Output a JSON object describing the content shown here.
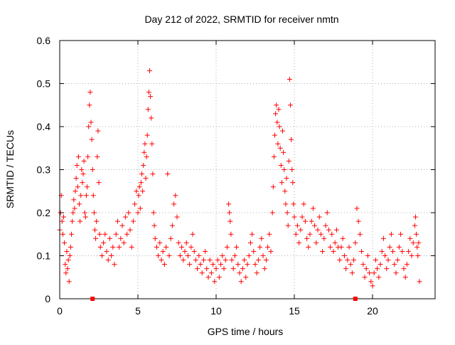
{
  "chart_data": {
    "type": "scatter",
    "title": "Day 212 of 2022, SRMTID for receiver nmtn",
    "xlabel": "GPS time / hours",
    "ylabel": "SRMTID / TECUs",
    "xlim": [
      0,
      24
    ],
    "ylim": [
      0,
      0.6
    ],
    "xticks": [
      0,
      5,
      10,
      15,
      20
    ],
    "xtick_labels": [
      "0",
      "5",
      "10",
      "15",
      "20"
    ],
    "yticks": [
      0,
      0.1,
      0.2,
      0.3,
      0.4,
      0.5,
      0.6
    ],
    "ytick_labels": [
      "0",
      "0.1",
      "0.2",
      "0.3",
      "0.4",
      "0.5",
      "0.6"
    ],
    "grid": true,
    "marker": "+",
    "color": "#ff0000",
    "series": [
      {
        "name": "SRMTID",
        "points": [
          [
            0.0,
            0.16
          ],
          [
            0.05,
            0.2
          ],
          [
            0.1,
            0.24
          ],
          [
            0.15,
            0.18
          ],
          [
            0.2,
            0.15
          ],
          [
            0.25,
            0.19
          ],
          [
            0.3,
            0.13
          ],
          [
            0.35,
            0.08
          ],
          [
            0.4,
            0.06
          ],
          [
            0.45,
            0.11
          ],
          [
            0.5,
            0.07
          ],
          [
            0.55,
            0.09
          ],
          [
            0.6,
            0.04
          ],
          [
            0.65,
            0.1
          ],
          [
            0.7,
            0.12
          ],
          [
            0.75,
            0.15
          ],
          [
            0.8,
            0.18
          ],
          [
            0.85,
            0.2
          ],
          [
            0.9,
            0.23
          ],
          [
            0.95,
            0.21
          ],
          [
            1.0,
            0.25
          ],
          [
            1.05,
            0.28
          ],
          [
            1.1,
            0.31
          ],
          [
            1.15,
            0.26
          ],
          [
            1.2,
            0.33
          ],
          [
            1.25,
            0.22
          ],
          [
            1.3,
            0.18
          ],
          [
            1.35,
            0.24
          ],
          [
            1.4,
            0.3
          ],
          [
            1.45,
            0.27
          ],
          [
            1.5,
            0.29
          ],
          [
            1.55,
            0.32
          ],
          [
            1.6,
            0.2
          ],
          [
            1.65,
            0.19
          ],
          [
            1.7,
            0.24
          ],
          [
            1.75,
            0.26
          ],
          [
            1.8,
            0.33
          ],
          [
            1.85,
            0.4
          ],
          [
            1.9,
            0.45
          ],
          [
            1.95,
            0.48
          ],
          [
            2.0,
            0.41
          ],
          [
            2.05,
            0.37
          ],
          [
            2.1,
            0.3
          ],
          [
            2.15,
            0.24
          ],
          [
            2.2,
            0.2
          ],
          [
            2.25,
            0.16
          ],
          [
            2.3,
            0.14
          ],
          [
            2.35,
            0.18
          ],
          [
            2.4,
            0.33
          ],
          [
            2.45,
            0.39
          ],
          [
            2.5,
            0.27
          ],
          [
            2.55,
            0.15
          ],
          [
            2.6,
            0.12
          ],
          [
            2.7,
            0.1
          ],
          [
            2.8,
            0.13
          ],
          [
            2.9,
            0.15
          ],
          [
            3.0,
            0.11
          ],
          [
            3.1,
            0.09
          ],
          [
            3.2,
            0.14
          ],
          [
            3.3,
            0.1
          ],
          [
            3.4,
            0.12
          ],
          [
            3.5,
            0.08
          ],
          [
            3.6,
            0.15
          ],
          [
            3.7,
            0.18
          ],
          [
            3.8,
            0.12
          ],
          [
            3.9,
            0.14
          ],
          [
            4.0,
            0.17
          ],
          [
            4.1,
            0.13
          ],
          [
            4.2,
            0.19
          ],
          [
            4.3,
            0.15
          ],
          [
            4.4,
            0.2
          ],
          [
            4.5,
            0.16
          ],
          [
            4.6,
            0.12
          ],
          [
            4.7,
            0.18
          ],
          [
            4.8,
            0.22
          ],
          [
            4.9,
            0.25
          ],
          [
            5.0,
            0.2
          ],
          [
            5.05,
            0.24
          ],
          [
            5.1,
            0.26
          ],
          [
            5.15,
            0.21
          ],
          [
            5.2,
            0.27
          ],
          [
            5.25,
            0.29
          ],
          [
            5.3,
            0.25
          ],
          [
            5.35,
            0.31
          ],
          [
            5.4,
            0.34
          ],
          [
            5.45,
            0.36
          ],
          [
            5.5,
            0.28
          ],
          [
            5.55,
            0.33
          ],
          [
            5.6,
            0.38
          ],
          [
            5.65,
            0.44
          ],
          [
            5.7,
            0.48
          ],
          [
            5.75,
            0.53
          ],
          [
            5.8,
            0.47
          ],
          [
            5.85,
            0.42
          ],
          [
            5.9,
            0.36
          ],
          [
            5.95,
            0.29
          ],
          [
            6.0,
            0.2
          ],
          [
            6.05,
            0.17
          ],
          [
            6.1,
            0.14
          ],
          [
            6.2,
            0.12
          ],
          [
            6.3,
            0.1
          ],
          [
            6.4,
            0.13
          ],
          [
            6.5,
            0.09
          ],
          [
            6.6,
            0.11
          ],
          [
            6.7,
            0.08
          ],
          [
            6.8,
            0.12
          ],
          [
            6.9,
            0.29
          ],
          [
            7.0,
            0.1
          ],
          [
            7.1,
            0.14
          ],
          [
            7.2,
            0.17
          ],
          [
            7.3,
            0.22
          ],
          [
            7.4,
            0.24
          ],
          [
            7.5,
            0.19
          ],
          [
            7.6,
            0.13
          ],
          [
            7.7,
            0.1
          ],
          [
            7.8,
            0.12
          ],
          [
            7.9,
            0.09
          ],
          [
            8.0,
            0.11
          ],
          [
            8.1,
            0.13
          ],
          [
            8.2,
            0.1
          ],
          [
            8.3,
            0.08
          ],
          [
            8.4,
            0.12
          ],
          [
            8.5,
            0.15
          ],
          [
            8.6,
            0.11
          ],
          [
            8.7,
            0.09
          ],
          [
            8.8,
            0.07
          ],
          [
            8.9,
            0.1
          ],
          [
            9.0,
            0.08
          ],
          [
            9.1,
            0.06
          ],
          [
            9.2,
            0.09
          ],
          [
            9.3,
            0.11
          ],
          [
            9.4,
            0.07
          ],
          [
            9.5,
            0.05
          ],
          [
            9.6,
            0.09
          ],
          [
            9.7,
            0.06
          ],
          [
            9.8,
            0.08
          ],
          [
            9.9,
            0.04
          ],
          [
            10.0,
            0.07
          ],
          [
            10.1,
            0.09
          ],
          [
            10.2,
            0.05
          ],
          [
            10.3,
            0.08
          ],
          [
            10.4,
            0.1
          ],
          [
            10.5,
            0.07
          ],
          [
            10.6,
            0.09
          ],
          [
            10.7,
            0.12
          ],
          [
            10.8,
            0.22
          ],
          [
            10.85,
            0.2
          ],
          [
            10.9,
            0.18
          ],
          [
            10.95,
            0.15
          ],
          [
            11.0,
            0.09
          ],
          [
            11.1,
            0.07
          ],
          [
            11.2,
            0.1
          ],
          [
            11.3,
            0.12
          ],
          [
            11.4,
            0.08
          ],
          [
            11.5,
            0.06
          ],
          [
            11.6,
            0.04
          ],
          [
            11.7,
            0.07
          ],
          [
            11.8,
            0.09
          ],
          [
            11.9,
            0.05
          ],
          [
            12.0,
            0.08
          ],
          [
            12.1,
            0.1
          ],
          [
            12.2,
            0.13
          ],
          [
            12.3,
            0.15
          ],
          [
            12.4,
            0.11
          ],
          [
            12.5,
            0.08
          ],
          [
            12.6,
            0.06
          ],
          [
            12.7,
            0.09
          ],
          [
            12.8,
            0.12
          ],
          [
            12.9,
            0.14
          ],
          [
            13.0,
            0.1
          ],
          [
            13.1,
            0.07
          ],
          [
            13.2,
            0.09
          ],
          [
            13.3,
            0.12
          ],
          [
            13.4,
            0.15
          ],
          [
            13.5,
            0.11
          ],
          [
            13.6,
            0.2
          ],
          [
            13.65,
            0.26
          ],
          [
            13.7,
            0.33
          ],
          [
            13.75,
            0.38
          ],
          [
            13.8,
            0.43
          ],
          [
            13.85,
            0.45
          ],
          [
            13.9,
            0.41
          ],
          [
            13.95,
            0.36
          ],
          [
            14.0,
            0.44
          ],
          [
            14.05,
            0.4
          ],
          [
            14.1,
            0.35
          ],
          [
            14.15,
            0.31
          ],
          [
            14.2,
            0.27
          ],
          [
            14.25,
            0.39
          ],
          [
            14.3,
            0.34
          ],
          [
            14.35,
            0.3
          ],
          [
            14.4,
            0.25
          ],
          [
            14.45,
            0.22
          ],
          [
            14.5,
            0.28
          ],
          [
            14.55,
            0.2
          ],
          [
            14.6,
            0.17
          ],
          [
            14.65,
            0.32
          ],
          [
            14.7,
            0.51
          ],
          [
            14.75,
            0.45
          ],
          [
            14.8,
            0.37
          ],
          [
            14.85,
            0.3
          ],
          [
            14.9,
            0.27
          ],
          [
            14.95,
            0.22
          ],
          [
            15.0,
            0.19
          ],
          [
            15.1,
            0.15
          ],
          [
            15.2,
            0.17
          ],
          [
            15.3,
            0.13
          ],
          [
            15.4,
            0.16
          ],
          [
            15.5,
            0.19
          ],
          [
            15.6,
            0.22
          ],
          [
            15.7,
            0.18
          ],
          [
            15.8,
            0.14
          ],
          [
            15.9,
            0.12
          ],
          [
            16.0,
            0.15
          ],
          [
            16.1,
            0.18
          ],
          [
            16.2,
            0.21
          ],
          [
            16.3,
            0.17
          ],
          [
            16.4,
            0.13
          ],
          [
            16.5,
            0.16
          ],
          [
            16.6,
            0.19
          ],
          [
            16.7,
            0.15
          ],
          [
            16.8,
            0.11
          ],
          [
            16.9,
            0.14
          ],
          [
            17.0,
            0.17
          ],
          [
            17.1,
            0.2
          ],
          [
            17.2,
            0.16
          ],
          [
            17.3,
            0.12
          ],
          [
            17.4,
            0.15
          ],
          [
            17.5,
            0.11
          ],
          [
            17.6,
            0.13
          ],
          [
            17.7,
            0.16
          ],
          [
            17.8,
            0.12
          ],
          [
            17.9,
            0.09
          ],
          [
            18.0,
            0.12
          ],
          [
            18.1,
            0.14
          ],
          [
            18.2,
            0.1
          ],
          [
            18.3,
            0.07
          ],
          [
            18.4,
            0.09
          ],
          [
            18.5,
            0.12
          ],
          [
            18.6,
            0.08
          ],
          [
            18.7,
            0.06
          ],
          [
            18.8,
            0.09
          ],
          [
            18.9,
            0.13
          ],
          [
            19.0,
            0.21
          ],
          [
            19.1,
            0.18
          ],
          [
            19.2,
            0.15
          ],
          [
            19.3,
            0.11
          ],
          [
            19.4,
            0.08
          ],
          [
            19.5,
            0.05
          ],
          [
            19.6,
            0.07
          ],
          [
            19.7,
            0.1
          ],
          [
            19.8,
            0.06
          ],
          [
            19.9,
            0.04
          ],
          [
            20.0,
            0.03
          ],
          [
            20.1,
            0.06
          ],
          [
            20.2,
            0.09
          ],
          [
            20.3,
            0.07
          ],
          [
            20.4,
            0.05
          ],
          [
            20.5,
            0.08
          ],
          [
            20.6,
            0.11
          ],
          [
            20.7,
            0.14
          ],
          [
            20.8,
            0.1
          ],
          [
            20.9,
            0.07
          ],
          [
            21.0,
            0.09
          ],
          [
            21.1,
            0.12
          ],
          [
            21.2,
            0.15
          ],
          [
            21.3,
            0.11
          ],
          [
            21.4,
            0.08
          ],
          [
            21.5,
            0.06
          ],
          [
            21.6,
            0.09
          ],
          [
            21.7,
            0.12
          ],
          [
            21.8,
            0.15
          ],
          [
            21.9,
            0.11
          ],
          [
            22.0,
            0.07
          ],
          [
            22.1,
            0.05
          ],
          [
            22.2,
            0.08
          ],
          [
            22.3,
            0.11
          ],
          [
            22.4,
            0.14
          ],
          [
            22.5,
            0.1
          ],
          [
            22.6,
            0.13
          ],
          [
            22.7,
            0.17
          ],
          [
            22.75,
            0.19
          ],
          [
            22.8,
            0.15
          ],
          [
            22.85,
            0.12
          ],
          [
            22.9,
            0.1
          ],
          [
            22.95,
            0.13
          ],
          [
            23.0,
            0.04
          ]
        ]
      }
    ],
    "boundary_markers": {
      "name": "axis markers",
      "x": [
        2.1,
        18.9
      ],
      "y": 0
    }
  }
}
